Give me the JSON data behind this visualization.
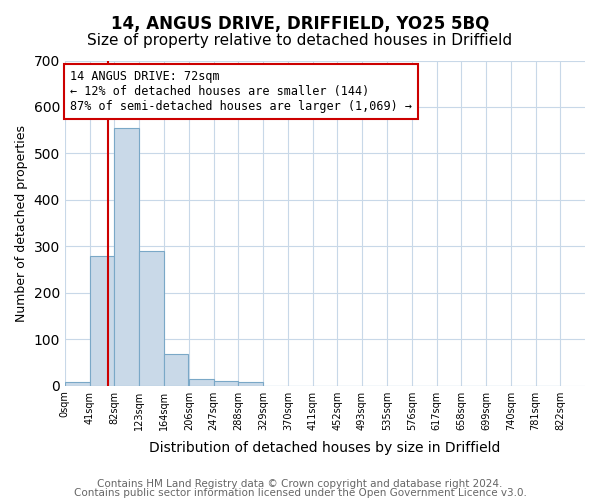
{
  "title1": "14, ANGUS DRIVE, DRIFFIELD, YO25 5BQ",
  "title2": "Size of property relative to detached houses in Driffield",
  "xlabel": "Distribution of detached houses by size in Driffield",
  "ylabel": "Number of detached properties",
  "bar_edges": [
    0,
    41,
    82,
    123,
    164,
    206,
    247,
    288,
    329,
    370,
    411,
    452,
    493,
    535,
    576,
    617,
    658,
    699,
    740,
    781,
    822
  ],
  "bar_heights": [
    7,
    280,
    555,
    290,
    68,
    15,
    10,
    8,
    0,
    0,
    0,
    0,
    0,
    0,
    0,
    0,
    0,
    0,
    0,
    0
  ],
  "bar_color": "#c9d9e8",
  "bar_edge_color": "#7aa8c7",
  "property_size": 72,
  "vline_color": "#cc0000",
  "annotation_text": "14 ANGUS DRIVE: 72sqm\n← 12% of detached houses are smaller (144)\n87% of semi-detached houses are larger (1,069) →",
  "annotation_box_color": "#ffffff",
  "annotation_border_color": "#cc0000",
  "ylim": [
    0,
    700
  ],
  "yticks": [
    0,
    100,
    200,
    300,
    400,
    500,
    600,
    700
  ],
  "tick_labels": [
    "0sqm",
    "41sqm",
    "82sqm",
    "123sqm",
    "164sqm",
    "206sqm",
    "247sqm",
    "288sqm",
    "329sqm",
    "370sqm",
    "411sqm",
    "452sqm",
    "493sqm",
    "535sqm",
    "576sqm",
    "617sqm",
    "658sqm",
    "699sqm",
    "740sqm",
    "781sqm",
    "822sqm"
  ],
  "footer1": "Contains HM Land Registry data © Crown copyright and database right 2024.",
  "footer2": "Contains public sector information licensed under the Open Government Licence v3.0.",
  "background_color": "#ffffff",
  "grid_color": "#c8d8e8",
  "title1_fontsize": 12,
  "title2_fontsize": 11,
  "annotation_fontsize": 8.5,
  "footer_fontsize": 7.5
}
